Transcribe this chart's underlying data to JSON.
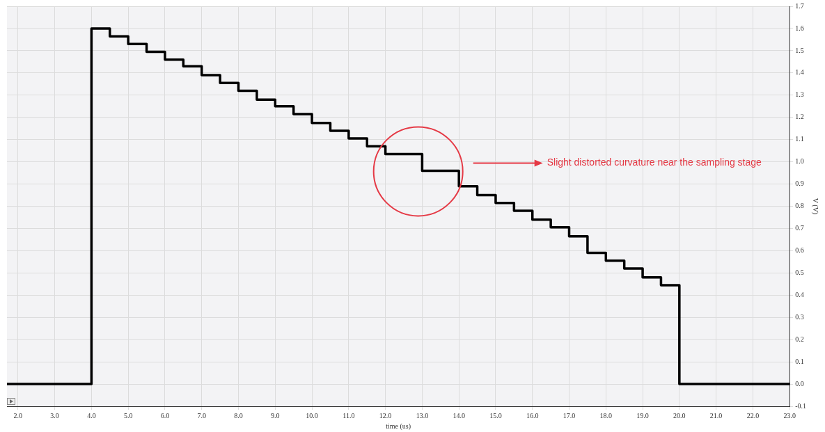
{
  "chart_data": {
    "type": "step",
    "xlabel": "time (us)",
    "ylabel": "V (V)",
    "x": [
      1.7,
      4.0,
      4.5,
      5.0,
      5.5,
      6.0,
      6.5,
      7.0,
      7.5,
      8.0,
      8.5,
      9.0,
      9.5,
      10.0,
      10.5,
      11.0,
      11.5,
      12.0,
      13.0,
      14.0,
      14.5,
      15.0,
      15.5,
      16.0,
      16.5,
      17.0,
      17.5,
      18.0,
      18.5,
      19.0,
      19.5,
      20.0,
      23.0
    ],
    "series": [
      {
        "color": "#000000",
        "values": [
          0,
          1.6,
          1.565,
          1.53,
          1.495,
          1.46,
          1.43,
          1.39,
          1.355,
          1.32,
          1.28,
          1.25,
          1.215,
          1.175,
          1.14,
          1.105,
          1.07,
          1.035,
          0.96,
          0.89,
          0.85,
          0.815,
          0.78,
          0.74,
          0.705,
          0.665,
          0.59,
          0.555,
          0.52,
          0.48,
          0.445,
          0,
          0
        ]
      }
    ],
    "xlim": [
      1.7,
      23.0
    ],
    "ylim": [
      -0.1,
      1.7
    ],
    "xticks": [
      {
        "value": 2,
        "label": "2.0"
      },
      {
        "value": 3,
        "label": "3.0"
      },
      {
        "value": 4,
        "label": "4.0"
      },
      {
        "value": 5,
        "label": "5.0"
      },
      {
        "value": 6,
        "label": "6.0"
      },
      {
        "value": 7,
        "label": "7.0"
      },
      {
        "value": 8,
        "label": "8.0"
      },
      {
        "value": 9,
        "label": "9.0"
      },
      {
        "value": 10,
        "label": "10.0"
      },
      {
        "value": 11,
        "label": "11.0"
      },
      {
        "value": 12,
        "label": "12.0"
      },
      {
        "value": 13,
        "label": "13.0"
      },
      {
        "value": 14,
        "label": "14.0"
      },
      {
        "value": 15,
        "label": "15.0"
      },
      {
        "value": 16,
        "label": "16.0"
      },
      {
        "value": 17,
        "label": "17.0"
      },
      {
        "value": 18,
        "label": "18.0"
      },
      {
        "value": 19,
        "label": "19.0"
      },
      {
        "value": 20,
        "label": "20.0"
      },
      {
        "value": 21,
        "label": "21.0"
      },
      {
        "value": 22,
        "label": "22.0"
      },
      {
        "value": 23,
        "label": "23.0"
      }
    ],
    "yticks": [
      -0.1,
      {
        "value": 0,
        "label": "0.0"
      },
      0.1,
      0.2,
      0.3,
      0.4,
      0.5,
      0.6,
      0.7,
      0.8,
      0.9,
      {
        "value": 1,
        "label": "1.0"
      },
      1.1,
      1.2,
      1.3,
      1.4,
      1.5,
      1.6,
      1.7
    ],
    "annotations": [
      "Slight distorted curvature near the sampling stage"
    ],
    "grid": true,
    "legend": false,
    "marker": "none",
    "line_style": "solid"
  }
}
